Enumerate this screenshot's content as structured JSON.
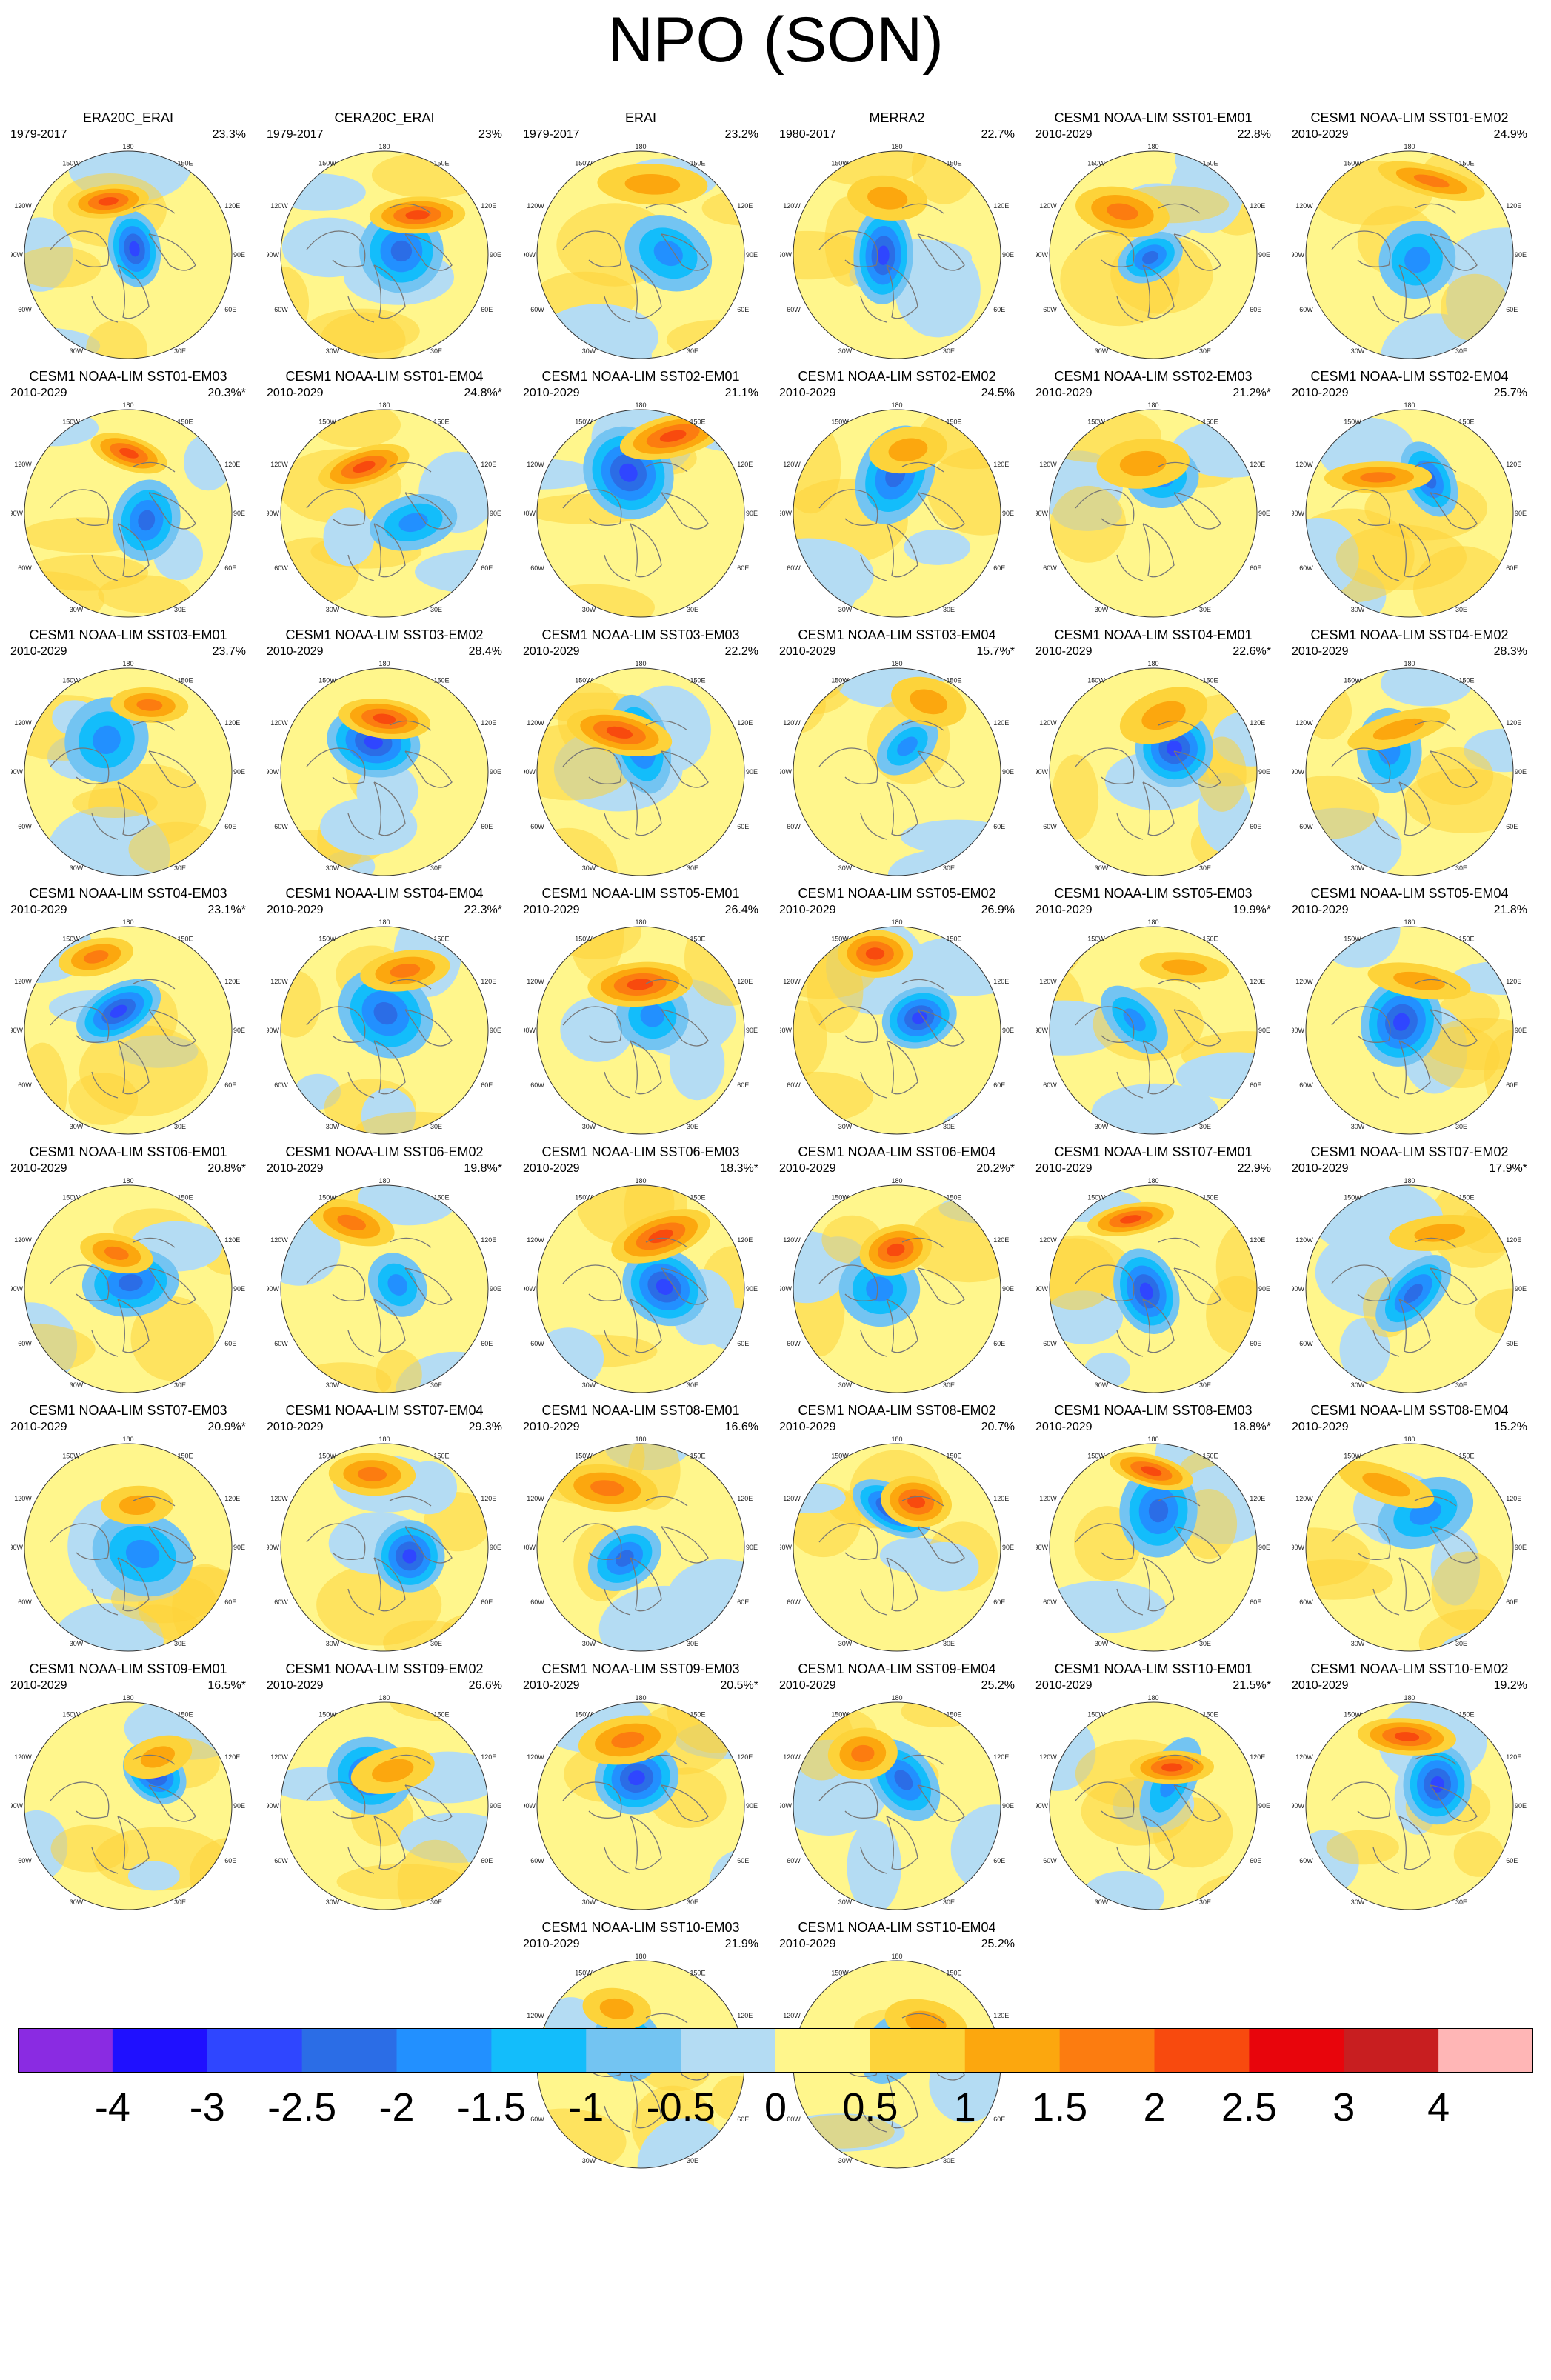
{
  "title": "NPO (SON)",
  "colors": {
    "land_outline": "#777777",
    "colorbar": [
      "#8a2be2",
      "#1f10ff",
      "#2f46ff",
      "#2b6de6",
      "#2290ff",
      "#13bdfb",
      "#73c4f2",
      "#b4dcf3",
      "#fff68c",
      "#fdd33a",
      "#fca70e",
      "#fc7c10",
      "#f84a0e",
      "#e8050c",
      "#c81e20",
      "#ffb6b6"
    ]
  },
  "colorbar_ticks": [
    "-4",
    "-3",
    "-2.5",
    "-2",
    "-1.5",
    "-1",
    "-0.5",
    "0",
    "0.5",
    "1",
    "1.5",
    "2",
    "2.5",
    "3",
    "4"
  ],
  "lon_labels": {
    "top": "180",
    "bottom": "0",
    "ul": "150W",
    "ur": "150E",
    "lu": "120W",
    "ru": "120E",
    "l": "90W",
    "r": "90E",
    "ll": "60W",
    "rl": "60E",
    "bl": "30W",
    "br": "30E"
  },
  "panels": [
    {
      "title": "ERA20C_ERAI",
      "period": "1979-2017",
      "variance": "23.3%"
    },
    {
      "title": "CERA20C_ERAI",
      "period": "1979-2017",
      "variance": "23%"
    },
    {
      "title": "ERAI",
      "period": "1979-2017",
      "variance": "23.2%"
    },
    {
      "title": "MERRA2",
      "period": "1980-2017",
      "variance": "22.7%"
    },
    {
      "title": "CESM1 NOAA-LIM SST01-EM01",
      "period": "2010-2029",
      "variance": "22.8%"
    },
    {
      "title": "CESM1 NOAA-LIM SST01-EM02",
      "period": "2010-2029",
      "variance": "24.9%"
    },
    {
      "title": "CESM1 NOAA-LIM SST01-EM03",
      "period": "2010-2029",
      "variance": "20.3%*"
    },
    {
      "title": "CESM1 NOAA-LIM SST01-EM04",
      "period": "2010-2029",
      "variance": "24.8%*"
    },
    {
      "title": "CESM1 NOAA-LIM SST02-EM01",
      "period": "2010-2029",
      "variance": "21.1%"
    },
    {
      "title": "CESM1 NOAA-LIM SST02-EM02",
      "period": "2010-2029",
      "variance": "24.5%"
    },
    {
      "title": "CESM1 NOAA-LIM SST02-EM03",
      "period": "2010-2029",
      "variance": "21.2%*"
    },
    {
      "title": "CESM1 NOAA-LIM SST02-EM04",
      "period": "2010-2029",
      "variance": "25.7%"
    },
    {
      "title": "CESM1 NOAA-LIM SST03-EM01",
      "period": "2010-2029",
      "variance": "23.7%"
    },
    {
      "title": "CESM1 NOAA-LIM SST03-EM02",
      "period": "2010-2029",
      "variance": "28.4%"
    },
    {
      "title": "CESM1 NOAA-LIM SST03-EM03",
      "period": "2010-2029",
      "variance": "22.2%"
    },
    {
      "title": "CESM1 NOAA-LIM SST03-EM04",
      "period": "2010-2029",
      "variance": "15.7%*"
    },
    {
      "title": "CESM1 NOAA-LIM SST04-EM01",
      "period": "2010-2029",
      "variance": "22.6%*"
    },
    {
      "title": "CESM1 NOAA-LIM SST04-EM02",
      "period": "2010-2029",
      "variance": "28.3%"
    },
    {
      "title": "CESM1 NOAA-LIM SST04-EM03",
      "period": "2010-2029",
      "variance": "23.1%*"
    },
    {
      "title": "CESM1 NOAA-LIM SST04-EM04",
      "period": "2010-2029",
      "variance": "22.3%*"
    },
    {
      "title": "CESM1 NOAA-LIM SST05-EM01",
      "period": "2010-2029",
      "variance": "26.4%"
    },
    {
      "title": "CESM1 NOAA-LIM SST05-EM02",
      "period": "2010-2029",
      "variance": "26.9%"
    },
    {
      "title": "CESM1 NOAA-LIM SST05-EM03",
      "period": "2010-2029",
      "variance": "19.9%*"
    },
    {
      "title": "CESM1 NOAA-LIM SST05-EM04",
      "period": "2010-2029",
      "variance": "21.8%"
    },
    {
      "title": "CESM1 NOAA-LIM SST06-EM01",
      "period": "2010-2029",
      "variance": "20.8%*"
    },
    {
      "title": "CESM1 NOAA-LIM SST06-EM02",
      "period": "2010-2029",
      "variance": "19.8%*"
    },
    {
      "title": "CESM1 NOAA-LIM SST06-EM03",
      "period": "2010-2029",
      "variance": "18.3%*"
    },
    {
      "title": "CESM1 NOAA-LIM SST06-EM04",
      "period": "2010-2029",
      "variance": "20.2%*"
    },
    {
      "title": "CESM1 NOAA-LIM SST07-EM01",
      "period": "2010-2029",
      "variance": "22.9%"
    },
    {
      "title": "CESM1 NOAA-LIM SST07-EM02",
      "period": "2010-2029",
      "variance": "17.9%*"
    },
    {
      "title": "CESM1 NOAA-LIM SST07-EM03",
      "period": "2010-2029",
      "variance": "20.9%*"
    },
    {
      "title": "CESM1 NOAA-LIM SST07-EM04",
      "period": "2010-2029",
      "variance": "29.3%"
    },
    {
      "title": "CESM1 NOAA-LIM SST08-EM01",
      "period": "2010-2029",
      "variance": "16.6%"
    },
    {
      "title": "CESM1 NOAA-LIM SST08-EM02",
      "period": "2010-2029",
      "variance": "20.7%"
    },
    {
      "title": "CESM1 NOAA-LIM SST08-EM03",
      "period": "2010-2029",
      "variance": "18.8%*"
    },
    {
      "title": "CESM1 NOAA-LIM SST08-EM04",
      "period": "2010-2029",
      "variance": "15.2%"
    },
    {
      "title": "CESM1 NOAA-LIM SST09-EM01",
      "period": "2010-2029",
      "variance": "16.5%*"
    },
    {
      "title": "CESM1 NOAA-LIM SST09-EM02",
      "period": "2010-2029",
      "variance": "26.6%"
    },
    {
      "title": "CESM1 NOAA-LIM SST09-EM03",
      "period": "2010-2029",
      "variance": "20.5%*"
    },
    {
      "title": "CESM1 NOAA-LIM SST09-EM04",
      "period": "2010-2029",
      "variance": "25.2%"
    },
    {
      "title": "CESM1 NOAA-LIM SST10-EM01",
      "period": "2010-2029",
      "variance": "21.5%*"
    },
    {
      "title": "CESM1 NOAA-LIM SST10-EM02",
      "period": "2010-2029",
      "variance": "19.2%"
    },
    {
      "title": "CESM1 NOAA-LIM SST10-EM03",
      "period": "2010-2029",
      "variance": "21.9%"
    },
    {
      "title": "CESM1 NOAA-LIM SST10-EM04",
      "period": "2010-2029",
      "variance": "25.2%"
    }
  ]
}
